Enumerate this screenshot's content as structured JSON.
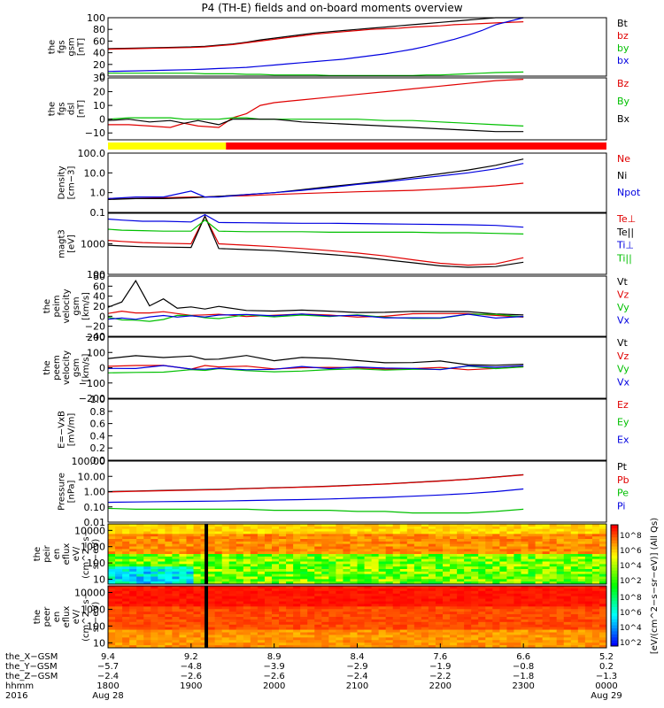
{
  "title": "P4 (TH-E) fields and on-board moments overview",
  "colors": {
    "black": "#000000",
    "red": "#e00000",
    "green": "#00c000",
    "blue": "#0000e0",
    "yellow": "#ffff00",
    "mode_red": "#ff0000"
  },
  "chart_data": [
    {
      "type": "line",
      "id": "fgs_gsm",
      "ylabel": [
        "the",
        "fgs",
        "gsm",
        "[nT]"
      ],
      "ylim": [
        0,
        100
      ],
      "yticks": [
        "100",
        "80",
        "60",
        "40",
        "20",
        "0"
      ],
      "ytick_values": [
        100,
        80,
        60,
        40,
        20,
        0
      ],
      "x": [
        0,
        20,
        40,
        60,
        70,
        80,
        90,
        100,
        110,
        120,
        130,
        140,
        150,
        160,
        170,
        180,
        190,
        200,
        210,
        220,
        230,
        240,
        250,
        260,
        270,
        280,
        300
      ],
      "series": [
        {
          "name": "Bt",
          "color": "black",
          "values": [
            47,
            48,
            49,
            50,
            51,
            53,
            55,
            58,
            62,
            65,
            68,
            71,
            74,
            76,
            78,
            80,
            82,
            84,
            86,
            88,
            90,
            92,
            94,
            96,
            98,
            100,
            100
          ]
        },
        {
          "name": "bz",
          "color": "red",
          "values": [
            46,
            47,
            48,
            49,
            50,
            52,
            54,
            57,
            60,
            63,
            66,
            69,
            72,
            74,
            76,
            78,
            80,
            81,
            82,
            84,
            85,
            86,
            88,
            89,
            90,
            91,
            93
          ]
        },
        {
          "name": "by",
          "color": "green",
          "values": [
            5,
            5,
            5,
            5,
            4,
            4,
            4,
            3,
            3,
            2,
            2,
            2,
            2,
            1,
            1,
            1,
            1,
            1,
            1,
            1,
            2,
            2,
            3,
            4,
            5,
            6,
            7
          ]
        },
        {
          "name": "bx",
          "color": "blue",
          "values": [
            8,
            9,
            10,
            11,
            12,
            13,
            14,
            15,
            17,
            19,
            21,
            23,
            25,
            27,
            29,
            32,
            35,
            38,
            42,
            46,
            51,
            57,
            63,
            70,
            78,
            88,
            100
          ]
        }
      ]
    },
    {
      "type": "line",
      "id": "fgs_dsl",
      "ylabel": [
        "the",
        "fgs",
        "dsl",
        "[nT]"
      ],
      "ylim": [
        -15,
        30
      ],
      "yticks": [
        "30",
        "20",
        "10",
        "0",
        "−10"
      ],
      "ytick_values": [
        30,
        20,
        10,
        0,
        -10
      ],
      "x": [
        0,
        15,
        30,
        45,
        55,
        65,
        80,
        90,
        100,
        110,
        120,
        130,
        140,
        160,
        180,
        200,
        220,
        240,
        260,
        280,
        300
      ],
      "series": [
        {
          "name": "Bz",
          "color": "red",
          "values": [
            -4,
            -4,
            -5,
            -6,
            -3,
            -5,
            -6,
            1,
            4,
            10,
            12,
            13,
            14,
            16,
            18,
            20,
            22,
            24,
            26,
            28,
            29
          ]
        },
        {
          "name": "By",
          "color": "green",
          "values": [
            0,
            1,
            1,
            1,
            0,
            0,
            0,
            1,
            1,
            0,
            0,
            0,
            0,
            0,
            0,
            -1,
            -1,
            -2,
            -3,
            -4,
            -5
          ]
        },
        {
          "name": "Bx",
          "color": "black",
          "values": [
            -1,
            0,
            -2,
            -1,
            -3,
            -1,
            -4,
            0,
            0,
            0,
            0,
            -1,
            -2,
            -3,
            -4,
            -5,
            -6,
            -7,
            -8,
            -9,
            -9
          ]
        }
      ]
    },
    {
      "type": "line",
      "id": "density",
      "scale": "log",
      "ylabel": [
        "Density",
        "[cm−3]"
      ],
      "ylim": [
        0.1,
        100
      ],
      "yticks": [
        "100.0",
        "10.0",
        "1.0",
        "0.1"
      ],
      "ytick_values": [
        100,
        10,
        1,
        0.1
      ],
      "x": [
        0,
        20,
        40,
        60,
        70,
        80,
        100,
        120,
        140,
        160,
        180,
        200,
        220,
        240,
        260,
        280,
        300
      ],
      "series": [
        {
          "name": "Ne",
          "color": "red",
          "values": [
            0.5,
            0.5,
            0.55,
            0.6,
            0.6,
            0.65,
            0.7,
            0.8,
            0.9,
            1.0,
            1.1,
            1.2,
            1.3,
            1.5,
            1.8,
            2.2,
            3.0
          ]
        },
        {
          "name": "Ni",
          "color": "black",
          "values": [
            0.45,
            0.5,
            0.5,
            0.55,
            0.6,
            0.65,
            0.8,
            1.0,
            1.4,
            2.0,
            2.8,
            4.0,
            6.0,
            9.0,
            14,
            24,
            50
          ]
        },
        {
          "name": "Npot",
          "color": "blue",
          "values": [
            0.5,
            0.6,
            0.6,
            1.2,
            0.6,
            0.6,
            0.8,
            1.0,
            1.3,
            1.8,
            2.6,
            3.5,
            5.0,
            7.0,
            10,
            16,
            30
          ]
        }
      ]
    },
    {
      "type": "line",
      "id": "mom_t3",
      "scale": "log",
      "ylabel": [
        "magt3",
        "[eV]"
      ],
      "ylim": [
        100,
        10000
      ],
      "yticks": [
        "1000",
        "100"
      ],
      "ytick_values": [
        1000,
        100
      ],
      "x": [
        0,
        10,
        25,
        40,
        60,
        70,
        80,
        100,
        120,
        140,
        160,
        180,
        200,
        220,
        240,
        260,
        280,
        300
      ],
      "series": [
        {
          "name": "Te⊥",
          "color": "red",
          "values": [
            1300,
            1200,
            1100,
            1050,
            1000,
            8000,
            1000,
            900,
            800,
            700,
            600,
            500,
            400,
            300,
            230,
            200,
            220,
            350
          ]
        },
        {
          "name": "Te||",
          "color": "black",
          "values": [
            900,
            850,
            800,
            780,
            760,
            8000,
            700,
            650,
            600,
            520,
            450,
            380,
            300,
            240,
            190,
            170,
            180,
            250
          ]
        },
        {
          "name": "Ti⊥",
          "color": "blue",
          "values": [
            6500,
            6000,
            5500,
            5500,
            5200,
            9000,
            5000,
            4900,
            4800,
            4700,
            4700,
            4600,
            4500,
            4400,
            4300,
            4200,
            4000,
            3500
          ]
        },
        {
          "name": "Ti||",
          "color": "green",
          "values": [
            3000,
            2800,
            2700,
            2600,
            2600,
            6000,
            2600,
            2500,
            2500,
            2500,
            2400,
            2400,
            2400,
            2400,
            2300,
            2300,
            2200,
            2100
          ]
        }
      ]
    },
    {
      "type": "line",
      "id": "peim_velocity",
      "ylabel": [
        "the",
        "peim",
        "velocity",
        "gsm",
        "[km/s]"
      ],
      "ylim": [
        -40,
        80
      ],
      "yticks": [
        "80",
        "60",
        "40",
        "20",
        "0",
        "−20",
        "−40"
      ],
      "ytick_values": [
        80,
        60,
        40,
        20,
        0,
        -20,
        -40
      ],
      "x": [
        0,
        10,
        20,
        30,
        40,
        50,
        60,
        70,
        80,
        100,
        120,
        140,
        160,
        180,
        200,
        220,
        240,
        260,
        280,
        300
      ],
      "series": [
        {
          "name": "Vt",
          "color": "black",
          "values": [
            20,
            25,
            70,
            25,
            30,
            20,
            18,
            16,
            15,
            14,
            12,
            11,
            10,
            9,
            8,
            7,
            6,
            5,
            5,
            5
          ]
        },
        {
          "name": "Vz",
          "color": "red",
          "values": [
            5,
            8,
            10,
            6,
            8,
            5,
            4,
            4,
            3,
            3,
            3,
            2,
            2,
            2,
            1,
            1,
            1,
            1,
            0,
            0
          ]
        },
        {
          "name": "Vy",
          "color": "green",
          "values": [
            -5,
            -8,
            -10,
            -6,
            -4,
            -3,
            -3,
            -2,
            -2,
            -2,
            -1,
            -1,
            -1,
            -1,
            0,
            0,
            0,
            0,
            0,
            0
          ]
        },
        {
          "name": "Vx",
          "color": "blue",
          "values": [
            -2,
            -3,
            -4,
            -2,
            -2,
            -1,
            -1,
            -1,
            -1,
            0,
            0,
            0,
            0,
            0,
            0,
            0,
            0,
            0,
            0,
            0
          ]
        }
      ]
    },
    {
      "type": "line",
      "id": "peem_velocity",
      "ylabel": [
        "the",
        "peem",
        "velocity",
        "gsm",
        "[km/s]"
      ],
      "ylim": [
        -200,
        200
      ],
      "yticks": [
        "200",
        "100",
        "0",
        "−100",
        "−200"
      ],
      "ytick_values": [
        200,
        100,
        0,
        -100,
        -200
      ],
      "x": [
        0,
        20,
        40,
        60,
        70,
        80,
        100,
        120,
        140,
        160,
        180,
        200,
        220,
        240,
        260,
        280,
        300
      ],
      "series": [
        {
          "name": "Vt",
          "color": "black",
          "values": [
            60,
            70,
            75,
            70,
            60,
            70,
            65,
            60,
            55,
            55,
            50,
            45,
            40,
            35,
            30,
            25,
            20
          ]
        },
        {
          "name": "Vz",
          "color": "red",
          "values": [
            0,
            10,
            5,
            0,
            0,
            5,
            5,
            5,
            0,
            0,
            0,
            0,
            0,
            0,
            0,
            0,
            0
          ]
        },
        {
          "name": "Vy",
          "color": "green",
          "values": [
            -20,
            -30,
            -25,
            -20,
            -20,
            -20,
            -15,
            -15,
            -10,
            -10,
            -10,
            -10,
            -5,
            -5,
            -5,
            -5,
            -5
          ]
        },
        {
          "name": "Vx",
          "color": "blue",
          "values": [
            0,
            0,
            0,
            0,
            0,
            0,
            0,
            0,
            0,
            0,
            0,
            0,
            0,
            0,
            0,
            0,
            0
          ]
        }
      ]
    },
    {
      "type": "line",
      "id": "efield",
      "ylabel": [
        "E=−VxB",
        "[mV/m]"
      ],
      "ylim": [
        0,
        1
      ],
      "yticks": [
        "1.0",
        "0.8",
        "0.6",
        "0.4",
        "0.2",
        "0.0"
      ],
      "ytick_values": [
        1,
        0.8,
        0.6,
        0.4,
        0.2,
        0
      ],
      "x": [],
      "series": [
        {
          "name": "Ez",
          "color": "red",
          "values": []
        },
        {
          "name": "Ey",
          "color": "green",
          "values": []
        },
        {
          "name": "Ex",
          "color": "blue",
          "values": []
        }
      ]
    },
    {
      "type": "line",
      "id": "pressure",
      "scale": "log",
      "ylabel": [
        "Pressure",
        "[nPa]"
      ],
      "ylim": [
        0.01,
        100
      ],
      "yticks": [
        "100.00",
        "10.00",
        "1.00",
        "0.10",
        "0.01"
      ],
      "ytick_values": [
        100,
        10,
        1,
        0.1,
        0.01
      ],
      "x": [
        0,
        20,
        40,
        60,
        80,
        100,
        120,
        140,
        160,
        180,
        200,
        220,
        240,
        260,
        280,
        300
      ],
      "series": [
        {
          "name": "Pt",
          "color": "black",
          "values": [
            1.0,
            1.1,
            1.2,
            1.3,
            1.4,
            1.6,
            1.8,
            2.0,
            2.3,
            2.7,
            3.2,
            4.0,
            5.0,
            6.5,
            9.0,
            13
          ]
        },
        {
          "name": "Pb",
          "color": "red",
          "values": [
            0.95,
            1.05,
            1.15,
            1.25,
            1.35,
            1.55,
            1.75,
            1.95,
            2.2,
            2.6,
            3.1,
            3.9,
            4.9,
            6.4,
            8.8,
            12.5
          ]
        },
        {
          "name": "Pe",
          "color": "green",
          "values": [
            0.08,
            0.07,
            0.07,
            0.07,
            0.07,
            0.07,
            0.06,
            0.06,
            0.06,
            0.05,
            0.05,
            0.04,
            0.04,
            0.04,
            0.05,
            0.07
          ]
        },
        {
          "name": "Pi",
          "color": "blue",
          "values": [
            0.2,
            0.21,
            0.22,
            0.23,
            0.24,
            0.26,
            0.28,
            0.3,
            0.33,
            0.37,
            0.42,
            0.5,
            0.6,
            0.75,
            1.0,
            1.5
          ]
        }
      ]
    },
    {
      "type": "heatmap",
      "id": "peir_en_eflux",
      "scale": "log",
      "ylabel": [
        "the",
        "peir",
        "en",
        "eflux",
        "eV/",
        "(cm^2−s−",
        "sr−eV)"
      ],
      "ylim": [
        5,
        25000
      ],
      "yticks": [
        "10000",
        "1000",
        "100",
        "10"
      ],
      "ytick_values": [
        10000,
        1000,
        100,
        10
      ]
    },
    {
      "type": "heatmap",
      "id": "peer_en_eflux",
      "scale": "log",
      "ylabel": [
        "the",
        "peer",
        "en",
        "eflux",
        "eV/",
        "(cm^2−s−",
        "sr−eV)"
      ],
      "ylim": [
        5,
        25000
      ],
      "yticks": [
        "10000",
        "1000",
        "100",
        "10"
      ],
      "ytick_values": [
        10000,
        1000,
        100,
        10
      ]
    }
  ],
  "mode_bar": {
    "segments": [
      {
        "from": 0,
        "to": 71,
        "color": "yellow"
      },
      {
        "from": 71,
        "to": 300,
        "color": "mode_red"
      }
    ]
  },
  "colorbar": {
    "label": "[eV/(cm^2−s−sr−eV)] (All Qs)",
    "ticks_upper": [
      "10^8",
      "10^6",
      "10^4",
      "10^2"
    ],
    "ticks_lower": [
      "10^8",
      "10^6",
      "10^4",
      "10^2"
    ]
  },
  "xaxis": {
    "range_minutes": [
      0,
      300
    ],
    "row_labels": [
      "the_X−GSM",
      "the_Y−GSM",
      "the_Z−GSM",
      "hhmm",
      "2016"
    ],
    "ticks": [
      {
        "min": 0,
        "x": "9.4",
        "y": "−5.7",
        "z": "−2.4",
        "hhmm": "1800",
        "date": "Aug 28"
      },
      {
        "min": 60,
        "x": "9.2",
        "y": "−4.8",
        "z": "−2.6",
        "hhmm": "1900",
        "date": ""
      },
      {
        "min": 120,
        "x": "8.9",
        "y": "−3.9",
        "z": "−2.6",
        "hhmm": "2000",
        "date": ""
      },
      {
        "min": 180,
        "x": "8.4",
        "y": "−2.9",
        "z": "−2.4",
        "hhmm": "2100",
        "date": ""
      },
      {
        "min": 240,
        "x": "7.6",
        "y": "−1.9",
        "z": "−2.2",
        "hhmm": "2200",
        "date": ""
      },
      {
        "min": 300,
        "x": "6.6",
        "y": "−0.8",
        "z": "−1.8",
        "hhmm": "2300",
        "date": ""
      },
      {
        "min": 360,
        "x": "5.2",
        "y": "0.2",
        "z": "−1.3",
        "hhmm": "0000",
        "date": "Aug 29"
      }
    ]
  }
}
